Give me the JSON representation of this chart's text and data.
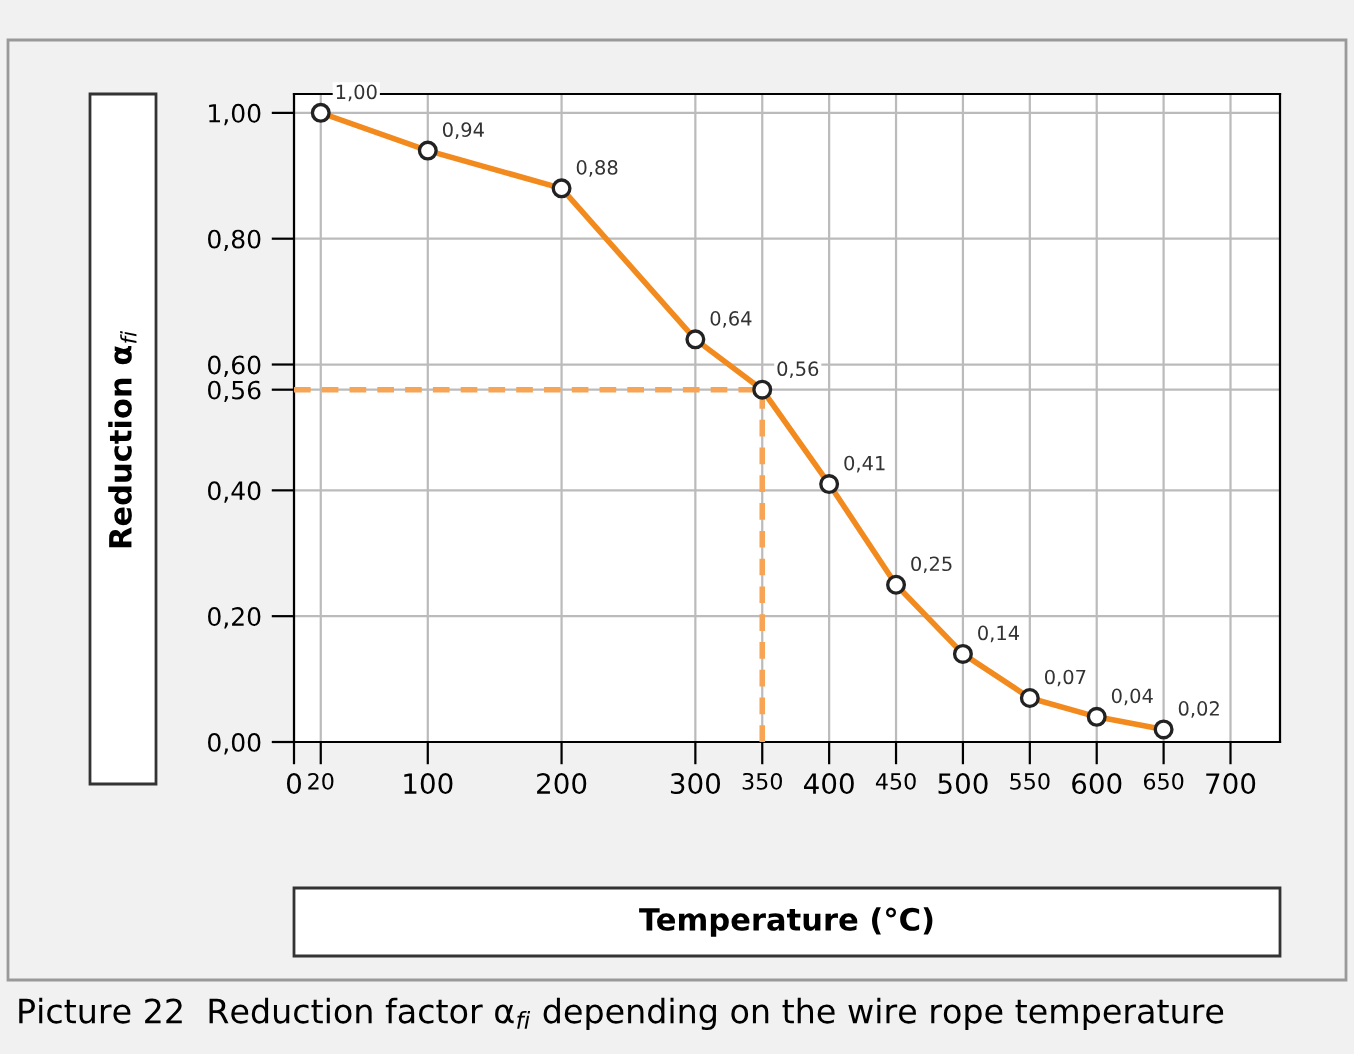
{
  "chart_data": {
    "type": "line",
    "x": [
      20,
      100,
      200,
      300,
      350,
      400,
      450,
      500,
      550,
      600,
      650
    ],
    "series": [
      {
        "color": "#f28a1e",
        "values": [
          1.0,
          0.94,
          0.88,
          0.64,
          0.56,
          0.41,
          0.25,
          0.14,
          0.07,
          0.04,
          0.02
        ],
        "value_labels": [
          "1,00",
          "0,94",
          "0,88",
          "0,64",
          "0,56",
          "0,41",
          "0,25",
          "0,14",
          "0,07",
          "0,04",
          "0,02"
        ]
      }
    ],
    "marker": "circle",
    "line_style": "solid",
    "xlabel": "Temperature (°C)",
    "ylabel": "Reduction α$_{fi}$",
    "xlim": [
      0,
      737
    ],
    "ylim": [
      0,
      1.03
    ],
    "xticks": [
      0,
      20,
      100,
      200,
      300,
      350,
      400,
      450,
      500,
      550,
      600,
      650,
      700
    ],
    "yticks": [
      {
        "value": 0,
        "label": "0,00"
      },
      {
        "value": 0.2,
        "label": "0,20"
      },
      {
        "value": 0.4,
        "label": "0,40"
      },
      {
        "value": 0.56,
        "label": "0,56"
      },
      {
        "value": 0.6,
        "label": "0,60"
      },
      {
        "value": 0.8,
        "label": "0,80"
      },
      {
        "value": 1.0,
        "label": "1,00"
      }
    ],
    "ref_lines": [
      {
        "axis": "x",
        "value": 350,
        "color": "#f7a555",
        "line_style": "dashed"
      },
      {
        "axis": "y",
        "value": 0.56,
        "color": "#f7a555",
        "line_style": "dashed"
      }
    ],
    "grid": true,
    "annotations": [
      "Picture 22  Reduction factor α$_{fi}$ depending on the wire rope temperature"
    ]
  }
}
